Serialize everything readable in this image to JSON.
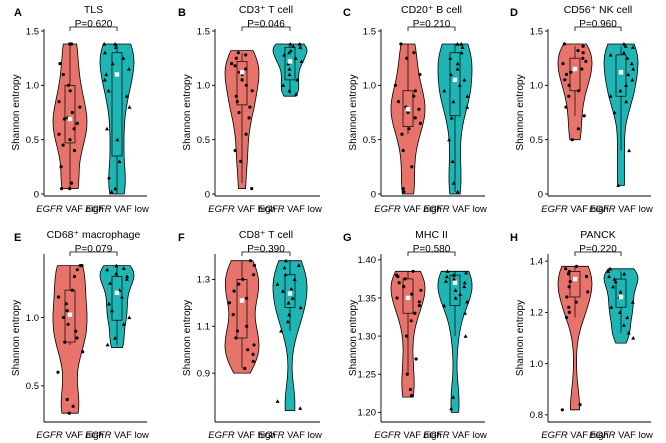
{
  "figure": {
    "x_group_prefix": "EGFR",
    "x_groups": [
      "VAF high",
      "VAF low"
    ],
    "colors": {
      "high": "#e8736b",
      "low": "#20b5b5",
      "point": "#000000",
      "mean_marker": "#ffffff"
    }
  },
  "chart_data": [
    {
      "type": "violin",
      "panel": "A",
      "title": "TLS",
      "p_value": "P=0.620",
      "ylabel": "Shannon entropy",
      "ylim": [
        0,
        1.5
      ],
      "yticks": [
        "0",
        "0.5",
        "1.0",
        "1.5"
      ],
      "categories": [
        "EGFR VAF high",
        "EGFR VAF low"
      ],
      "series": [
        {
          "name": "EGFR VAF high",
          "min": 0.05,
          "q1": 0.47,
          "median": 0.69,
          "q3": 1.0,
          "max": 1.38,
          "mean": 0.69,
          "range": [
            0.05,
            1.38
          ],
          "points": [
            1.38,
            1.38,
            1.2,
            1.1,
            1.0,
            0.95,
            0.85,
            0.8,
            0.75,
            0.7,
            0.69,
            0.65,
            0.6,
            0.55,
            0.5,
            0.45,
            0.4,
            0.25,
            0.1,
            0.05,
            0.05
          ]
        },
        {
          "name": "EGFR VAF low",
          "min": 0.0,
          "q1": 0.35,
          "median": 1.1,
          "q3": 1.3,
          "max": 1.38,
          "mean": 1.1,
          "range": [
            0.0,
            1.38
          ],
          "points": [
            1.38,
            1.38,
            1.35,
            1.3,
            1.25,
            1.2,
            1.15,
            1.1,
            1.05,
            0.95,
            0.9,
            0.8,
            0.6,
            0.5,
            0.3,
            0.15,
            0.05,
            0.02
          ]
        }
      ]
    },
    {
      "type": "violin",
      "panel": "B",
      "title": "CD3⁺ T cell",
      "p_value": "P=0.046",
      "ylabel": "Shannon entropy",
      "ylim": [
        0,
        1.5
      ],
      "yticks": [
        "0",
        "0.5",
        "1.0",
        "1.5"
      ],
      "categories": [
        "EGFR VAF high",
        "EGFR VAF low"
      ],
      "series": [
        {
          "name": "EGFR VAF high",
          "min": 0.1,
          "q1": 0.82,
          "median": 1.12,
          "q3": 1.22,
          "max": 1.3,
          "mean": 1.12,
          "range": [
            0.05,
            1.32
          ],
          "points": [
            1.3,
            1.28,
            1.25,
            1.2,
            1.18,
            1.15,
            1.12,
            1.1,
            1.05,
            1.0,
            0.95,
            0.9,
            0.85,
            0.8,
            0.75,
            0.7,
            0.55,
            0.4,
            0.3,
            0.05
          ]
        },
        {
          "name": "EGFR VAF low",
          "min": 0.92,
          "q1": 1.05,
          "median": 1.22,
          "q3": 1.35,
          "max": 1.38,
          "mean": 1.22,
          "range": [
            0.9,
            1.38
          ],
          "points": [
            1.38,
            1.38,
            1.36,
            1.35,
            1.32,
            1.3,
            1.28,
            1.25,
            1.22,
            1.2,
            1.15,
            1.1,
            1.05,
            1.0,
            0.95,
            0.92
          ]
        }
      ]
    },
    {
      "type": "violin",
      "panel": "C",
      "title": "CD20⁺ B cell",
      "p_value": "P=0.210",
      "ylabel": "Shannon entropy",
      "ylim": [
        0,
        1.5
      ],
      "yticks": [
        "0",
        "0.5",
        "1.0",
        "1.5"
      ],
      "categories": [
        "EGFR VAF high",
        "EGFR VAF low"
      ],
      "series": [
        {
          "name": "EGFR VAF high",
          "min": 0.55,
          "q1": 0.62,
          "median": 0.75,
          "q3": 0.95,
          "max": 1.38,
          "mean": 0.78,
          "range": [
            0.0,
            1.38
          ],
          "points": [
            1.38,
            1.3,
            1.25,
            1.1,
            1.0,
            0.95,
            0.9,
            0.85,
            0.8,
            0.78,
            0.75,
            0.7,
            0.65,
            0.6,
            0.55,
            0.4,
            0.25,
            0.05,
            0.02
          ]
        },
        {
          "name": "EGFR VAF low",
          "min": 0.02,
          "q1": 0.72,
          "median": 1.1,
          "q3": 1.3,
          "max": 1.38,
          "mean": 1.05,
          "range": [
            0.0,
            1.38
          ],
          "points": [
            1.38,
            1.38,
            1.35,
            1.3,
            1.25,
            1.2,
            1.15,
            1.1,
            1.05,
            1.0,
            0.95,
            0.9,
            0.85,
            0.8,
            0.7,
            0.5,
            0.3,
            0.1,
            0.02
          ]
        }
      ]
    },
    {
      "type": "violin",
      "panel": "D",
      "title": "CD56⁺ NK cell",
      "p_value": "P=0.960",
      "ylabel": "Shannon entropy",
      "ylim": [
        0,
        1.5
      ],
      "yticks": [
        "0",
        "0.5",
        "1.0",
        "1.5"
      ],
      "categories": [
        "EGFR VAF high",
        "EGFR VAF low"
      ],
      "series": [
        {
          "name": "EGFR VAF high",
          "min": 0.72,
          "q1": 0.95,
          "median": 1.12,
          "q3": 1.25,
          "max": 1.36,
          "mean": 1.15,
          "range": [
            0.5,
            1.38
          ],
          "points": [
            1.38,
            1.36,
            1.32,
            1.3,
            1.25,
            1.22,
            1.2,
            1.15,
            1.12,
            1.1,
            1.05,
            1.0,
            0.95,
            0.9,
            0.8,
            0.72,
            0.6,
            0.5
          ]
        },
        {
          "name": "EGFR VAF low",
          "min": 0.4,
          "q1": 0.9,
          "median": 1.1,
          "q3": 1.28,
          "max": 1.36,
          "mean": 1.12,
          "range": [
            0.08,
            1.38
          ],
          "points": [
            1.38,
            1.36,
            1.35,
            1.3,
            1.28,
            1.25,
            1.2,
            1.15,
            1.1,
            1.05,
            1.0,
            0.95,
            0.9,
            0.85,
            0.75,
            0.4,
            0.08
          ]
        }
      ]
    },
    {
      "type": "violin",
      "panel": "E",
      "title": "CD68⁺ macrophage",
      "p_value": "P=0.079",
      "ylabel": "Shannon entropy",
      "ylim": [
        0.25,
        1.45
      ],
      "yticks": [
        "0.5",
        "1.0"
      ],
      "ytick_values": [
        0.5,
        1.0
      ],
      "categories": [
        "EGFR VAF high",
        "EGFR VAF low"
      ],
      "series": [
        {
          "name": "EGFR VAF high",
          "min": 0.8,
          "q1": 0.82,
          "median": 1.05,
          "q3": 1.2,
          "max": 1.38,
          "mean": 1.02,
          "range": [
            0.3,
            1.38
          ],
          "points": [
            1.38,
            1.38,
            1.35,
            1.3,
            1.2,
            1.15,
            1.1,
            1.05,
            1.0,
            0.95,
            0.9,
            0.85,
            0.82,
            0.75,
            0.6,
            0.4,
            0.35,
            0.3
          ]
        },
        {
          "name": "EGFR VAF low",
          "min": 0.8,
          "q1": 0.98,
          "median": 1.2,
          "q3": 1.3,
          "max": 1.38,
          "mean": 1.18,
          "range": [
            0.78,
            1.38
          ],
          "points": [
            1.38,
            1.36,
            1.35,
            1.32,
            1.3,
            1.28,
            1.25,
            1.2,
            1.15,
            1.1,
            1.05,
            1.0,
            0.95,
            0.85,
            0.8
          ]
        }
      ]
    },
    {
      "type": "violin",
      "panel": "F",
      "title": "CD8⁺ T cell",
      "p_value": "P=0.390",
      "ylabel": "Shannon entropy",
      "ylim": [
        0.7,
        1.4
      ],
      "yticks": [
        "0.9",
        "1.1",
        "1.3"
      ],
      "ytick_values": [
        0.9,
        1.1,
        1.3
      ],
      "categories": [
        "EGFR VAF high",
        "EGFR VAF low"
      ],
      "series": [
        {
          "name": "EGFR VAF high",
          "min": 0.92,
          "q1": 1.05,
          "median": 1.22,
          "q3": 1.3,
          "max": 1.38,
          "mean": 1.21,
          "range": [
            0.9,
            1.38
          ],
          "points": [
            1.38,
            1.36,
            1.32,
            1.3,
            1.28,
            1.25,
            1.22,
            1.2,
            1.15,
            1.1,
            1.08,
            1.05,
            1.02,
            1.0,
            0.98,
            0.95,
            0.92
          ]
        },
        {
          "name": "EGFR VAF low",
          "min": 1.08,
          "q1": 1.18,
          "median": 1.25,
          "q3": 1.32,
          "max": 1.38,
          "mean": 1.24,
          "range": [
            0.74,
            1.38
          ],
          "points": [
            1.38,
            1.36,
            1.35,
            1.32,
            1.3,
            1.28,
            1.26,
            1.25,
            1.22,
            1.2,
            1.18,
            1.15,
            1.12,
            1.08,
            0.78,
            0.75
          ]
        }
      ]
    },
    {
      "type": "violin",
      "panel": "G",
      "title": "MHC II",
      "p_value": "P=0.580",
      "ylabel": "Shannon entropy",
      "ylim": [
        1.19,
        1.405
      ],
      "yticks": [
        "1.20",
        "1.25",
        "1.30",
        "1.35",
        "1.40"
      ],
      "ytick_values": [
        1.2,
        1.25,
        1.3,
        1.35,
        1.4
      ],
      "categories": [
        "EGFR VAF high",
        "EGFR VAF low"
      ],
      "series": [
        {
          "name": "EGFR VAF high",
          "min": 1.25,
          "q1": 1.33,
          "median": 1.36,
          "q3": 1.375,
          "max": 1.385,
          "mean": 1.35,
          "range": [
            1.22,
            1.385
          ],
          "points": [
            1.385,
            1.38,
            1.378,
            1.375,
            1.37,
            1.365,
            1.36,
            1.355,
            1.35,
            1.345,
            1.34,
            1.33,
            1.32,
            1.3,
            1.27,
            1.25,
            1.23,
            1.222
          ]
        },
        {
          "name": "EGFR VAF low",
          "min": 1.3,
          "q1": 1.34,
          "median": 1.36,
          "q3": 1.38,
          "max": 1.385,
          "mean": 1.37,
          "range": [
            1.2,
            1.385
          ],
          "points": [
            1.385,
            1.383,
            1.38,
            1.378,
            1.375,
            1.372,
            1.37,
            1.365,
            1.36,
            1.355,
            1.35,
            1.345,
            1.34,
            1.33,
            1.3,
            1.22,
            1.205
          ]
        }
      ]
    },
    {
      "type": "violin",
      "panel": "H",
      "title": "PANCK",
      "p_value": "P=0.220",
      "ylabel": "Shannon entropy",
      "ylim": [
        0.78,
        1.42
      ],
      "yticks": [
        "0.8",
        "1.0",
        "1.2",
        "1.4"
      ],
      "ytick_values": [
        0.8,
        1.0,
        1.2,
        1.4
      ],
      "categories": [
        "EGFR VAF high",
        "EGFR VAF low"
      ],
      "series": [
        {
          "name": "EGFR VAF high",
          "min": 1.18,
          "q1": 1.26,
          "median": 1.32,
          "q3": 1.36,
          "max": 1.38,
          "mean": 1.33,
          "range": [
            0.82,
            1.38
          ],
          "points": [
            1.38,
            1.37,
            1.36,
            1.35,
            1.34,
            1.33,
            1.32,
            1.3,
            1.28,
            1.26,
            1.24,
            1.22,
            1.2,
            1.18,
            0.84,
            0.82
          ]
        },
        {
          "name": "EGFR VAF low",
          "min": 1.12,
          "q1": 1.22,
          "median": 1.28,
          "q3": 1.33,
          "max": 1.36,
          "mean": 1.26,
          "range": [
            1.08,
            1.37
          ],
          "points": [
            1.37,
            1.36,
            1.35,
            1.34,
            1.33,
            1.32,
            1.3,
            1.28,
            1.26,
            1.24,
            1.22,
            1.2,
            1.18,
            1.15,
            1.12,
            1.1
          ]
        }
      ]
    }
  ]
}
